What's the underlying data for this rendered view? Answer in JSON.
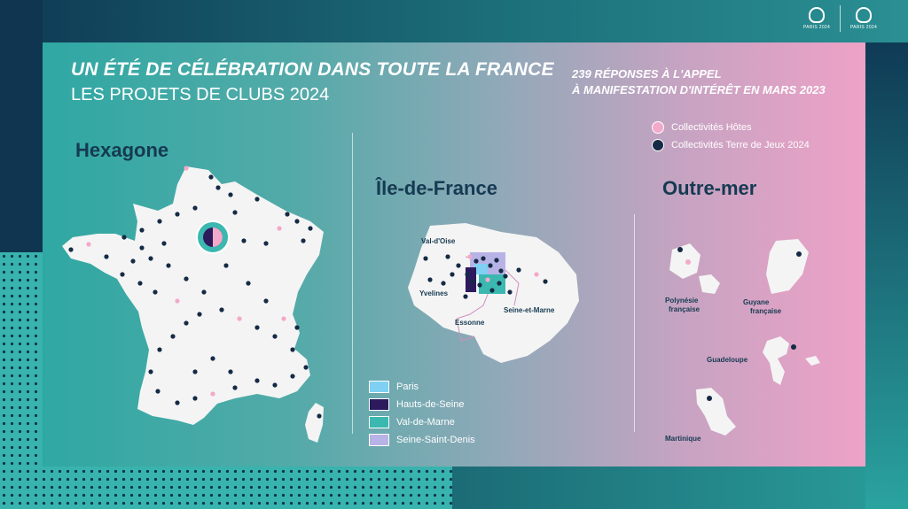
{
  "header": {
    "title_line1": "UN ÉTÉ DE CÉLÉBRATION DANS TOUTE LA FRANCE",
    "title_line2": "LES PROJETS DE CLUBS 2024",
    "responses_line1": "239 RÉPONSES À L'APPEL",
    "responses_line2": "À MANIFESTATION D'INTÉRÊT EN MARS 2023"
  },
  "logos": {
    "olympic": "PARIS 2024",
    "paralympic": "PARIS 2024"
  },
  "legend": {
    "host": {
      "label": "Collectivités Hôtes",
      "color": "#f3a9c9"
    },
    "tdj": {
      "label": "Collectivités Terre de Jeux 2024",
      "color": "#152a45"
    }
  },
  "sections": {
    "hexagone": "Hexagone",
    "idf": "Île-de-France",
    "outremer": "Outre-mer"
  },
  "idf_regions": {
    "val_doise": "Val-d'Oise",
    "yvelines": "Yvelines",
    "essonne": "Essonne",
    "seine_et_marne": "Seine-et-Marne"
  },
  "idf_legend": [
    {
      "label": "Paris",
      "color": "#7fd0f2"
    },
    {
      "label": "Hauts-de-Seine",
      "color": "#2c1a5c"
    },
    {
      "label": "Val-de-Marne",
      "color": "#3bb8b0"
    },
    {
      "label": "Seine-Saint-Denis",
      "color": "#b7b3e6"
    }
  ],
  "outremer_labels": {
    "polynesie": "Polynésie française",
    "guyane": "Guyane française",
    "guadeloupe": "Guadeloupe",
    "martinique": "Martinique"
  }
}
